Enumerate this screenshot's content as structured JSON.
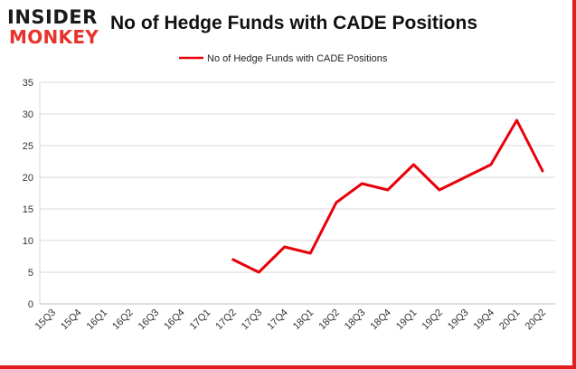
{
  "logo": {
    "line1": "INSIDER",
    "line2": "MONKEY"
  },
  "chart_data": {
    "type": "line",
    "title": "No of Hedge Funds with CADE Positions",
    "xlabel": "",
    "ylabel": "",
    "ylim": [
      0,
      35
    ],
    "yticks": [
      0,
      5,
      10,
      15,
      20,
      25,
      30,
      35
    ],
    "grid": true,
    "legend_position": "top-center",
    "categories": [
      "15Q3",
      "15Q4",
      "16Q1",
      "16Q2",
      "16Q3",
      "16Q4",
      "17Q1",
      "17Q2",
      "17Q3",
      "17Q4",
      "18Q1",
      "18Q2",
      "18Q3",
      "18Q4",
      "19Q1",
      "19Q2",
      "19Q3",
      "19Q4",
      "20Q1",
      "20Q2"
    ],
    "series": [
      {
        "name": "No of Hedge Funds with CADE Positions",
        "color": "#e8000b",
        "values": [
          null,
          null,
          null,
          null,
          null,
          null,
          null,
          7,
          5,
          9,
          8,
          16,
          19,
          18,
          22,
          18,
          20,
          22,
          29,
          21
        ]
      }
    ]
  }
}
